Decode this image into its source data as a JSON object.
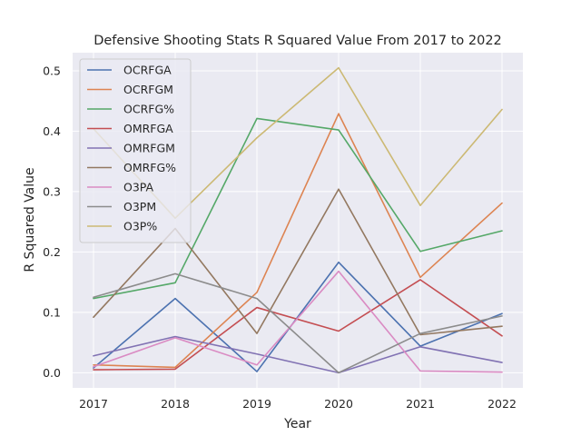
{
  "chart_data": {
    "type": "line",
    "title": "Defensive Shooting Stats R Squared Value From 2017 to 2022",
    "xlabel": "Year",
    "ylabel": "R Squared Value",
    "x": [
      2017,
      2018,
      2019,
      2020,
      2021,
      2022
    ],
    "x_tick_labels": [
      "2017",
      "2018",
      "2019",
      "2020",
      "2021",
      "2022"
    ],
    "y_ticks": [
      0.0,
      0.1,
      0.2,
      0.3,
      0.4,
      0.5
    ],
    "y_tick_labels": [
      "0.0",
      "0.1",
      "0.2",
      "0.3",
      "0.4",
      "0.5"
    ],
    "ylim": [
      -0.025,
      0.53
    ],
    "grid": true,
    "legend_position": "upper-left",
    "background": "#eaeaf2",
    "series": [
      {
        "name": "OCRFGA",
        "color": "#4c72b0",
        "values": [
          0.008,
          0.123,
          0.002,
          0.183,
          0.044,
          0.098
        ]
      },
      {
        "name": "OCRFGM",
        "color": "#dd8452",
        "values": [
          0.013,
          0.009,
          0.133,
          0.429,
          0.158,
          0.281
        ]
      },
      {
        "name": "OCRFG%",
        "color": "#55a868",
        "values": [
          0.123,
          0.149,
          0.421,
          0.402,
          0.201,
          0.235
        ]
      },
      {
        "name": "OMRFGA",
        "color": "#c44e52",
        "values": [
          0.005,
          0.006,
          0.108,
          0.069,
          0.154,
          0.061
        ]
      },
      {
        "name": "OMRFGM",
        "color": "#8172b3",
        "values": [
          0.028,
          0.06,
          0.031,
          0.0,
          0.043,
          0.017
        ]
      },
      {
        "name": "OMRFG%",
        "color": "#937860",
        "values": [
          0.092,
          0.239,
          0.065,
          0.304,
          0.063,
          0.077
        ]
      },
      {
        "name": "O3PA",
        "color": "#da8bc3",
        "values": [
          0.01,
          0.058,
          0.013,
          0.168,
          0.003,
          0.001
        ]
      },
      {
        "name": "O3PM",
        "color": "#8c8c8c",
        "values": [
          0.125,
          0.164,
          0.123,
          0.0,
          0.065,
          0.094
        ]
      },
      {
        "name": "O3P%",
        "color": "#ccb974",
        "values": [
          0.404,
          0.256,
          0.389,
          0.505,
          0.277,
          0.436
        ]
      }
    ]
  }
}
